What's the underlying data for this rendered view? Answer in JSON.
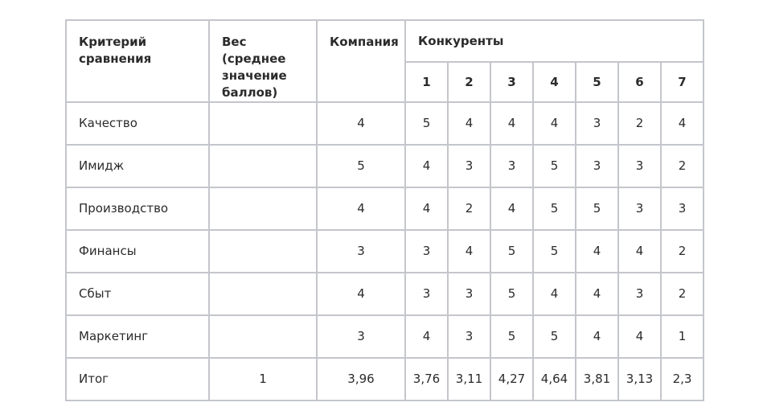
{
  "header": {
    "criterion": "Критерий сравнения",
    "weight": "Вес (среднее значение баллов)",
    "company": "Компания",
    "competitors": "Конкуренты",
    "competitor_numbers": [
      "1",
      "2",
      "3",
      "4",
      "5",
      "6",
      "7"
    ]
  },
  "rows": [
    {
      "label": "Качество",
      "weight": "",
      "company": "4",
      "values": [
        "5",
        "4",
        "4",
        "4",
        "3",
        "2",
        "4"
      ]
    },
    {
      "label": "Имидж",
      "weight": "",
      "company": "5",
      "values": [
        "4",
        "3",
        "3",
        "5",
        "3",
        "3",
        "2"
      ]
    },
    {
      "label": "Производство",
      "weight": "",
      "company": "4",
      "values": [
        "4",
        "2",
        "4",
        "5",
        "5",
        "3",
        "3"
      ]
    },
    {
      "label": "Финансы",
      "weight": "",
      "company": "3",
      "values": [
        "3",
        "4",
        "5",
        "5",
        "4",
        "4",
        "2"
      ]
    },
    {
      "label": "Сбыт",
      "weight": "",
      "company": "4",
      "values": [
        "3",
        "3",
        "5",
        "4",
        "4",
        "3",
        "2"
      ]
    },
    {
      "label": "Маркетинг",
      "weight": "",
      "company": "3",
      "values": [
        "4",
        "3",
        "5",
        "5",
        "4",
        "4",
        "1"
      ]
    }
  ],
  "total": {
    "label": "Итог",
    "weight": "1",
    "company": "3,96",
    "values": [
      "3,76",
      "3,11",
      "4,27",
      "4,64",
      "3,81",
      "3,13",
      "2,3"
    ]
  }
}
